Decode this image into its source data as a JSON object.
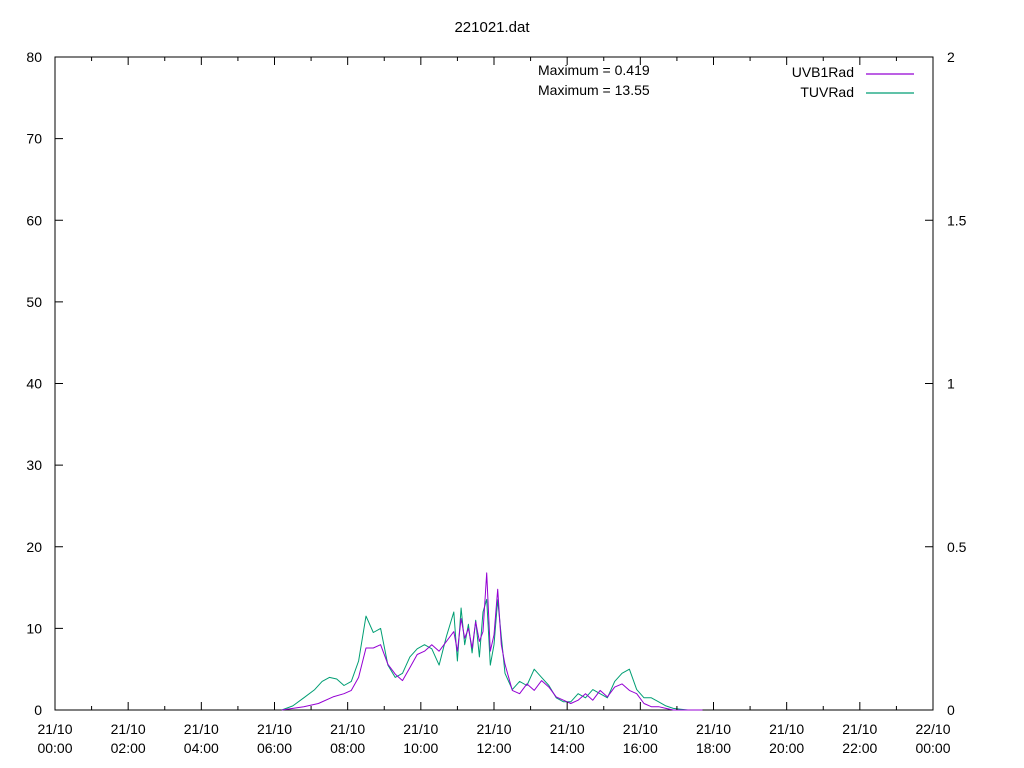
{
  "chart_data": {
    "type": "line",
    "title": "221021.dat",
    "annotations": [
      "Maximum = 0.419",
      "Maximum = 13.55"
    ],
    "legend_placement": "top-right",
    "grid": false,
    "x_axis": {
      "range_hours": [
        0,
        24
      ],
      "tick_labels": [
        [
          "21/10",
          "00:00"
        ],
        [
          "21/10",
          "02:00"
        ],
        [
          "21/10",
          "04:00"
        ],
        [
          "21/10",
          "06:00"
        ],
        [
          "21/10",
          "08:00"
        ],
        [
          "21/10",
          "10:00"
        ],
        [
          "21/10",
          "12:00"
        ],
        [
          "21/10",
          "14:00"
        ],
        [
          "21/10",
          "16:00"
        ],
        [
          "21/10",
          "18:00"
        ],
        [
          "21/10",
          "20:00"
        ],
        [
          "21/10",
          "22:00"
        ],
        [
          "22/10",
          "00:00"
        ]
      ]
    },
    "y_axis_left": {
      "range": [
        0,
        80
      ],
      "ticks": [
        "0",
        "10",
        "20",
        "30",
        "40",
        "50",
        "60",
        "70",
        "80"
      ]
    },
    "y_axis_right": {
      "range": [
        0,
        2
      ],
      "ticks": [
        "0",
        "0.5",
        "1",
        "1.5",
        "2"
      ]
    },
    "series": [
      {
        "name": "UVB1Rad",
        "axis": "right",
        "color": "#9400d3",
        "x_hours": [
          6.2,
          6.8,
          7.2,
          7.6,
          7.9,
          8.1,
          8.3,
          8.5,
          8.7,
          8.9,
          9.1,
          9.3,
          9.5,
          9.7,
          9.9,
          10.1,
          10.3,
          10.5,
          10.7,
          10.9,
          11.0,
          11.1,
          11.2,
          11.3,
          11.4,
          11.5,
          11.6,
          11.7,
          11.8,
          11.9,
          12.0,
          12.1,
          12.2,
          12.3,
          12.5,
          12.7,
          12.9,
          13.1,
          13.3,
          13.5,
          13.7,
          13.9,
          14.1,
          14.3,
          14.5,
          14.7,
          14.9,
          15.1,
          15.3,
          15.5,
          15.7,
          15.9,
          16.1,
          16.3,
          16.5,
          16.7,
          16.9,
          17.1,
          17.3,
          17.5,
          17.7
        ],
        "values": [
          0.0,
          0.01,
          0.02,
          0.04,
          0.05,
          0.06,
          0.1,
          0.19,
          0.19,
          0.2,
          0.14,
          0.11,
          0.09,
          0.13,
          0.17,
          0.18,
          0.2,
          0.18,
          0.21,
          0.24,
          0.18,
          0.28,
          0.22,
          0.25,
          0.19,
          0.27,
          0.21,
          0.24,
          0.42,
          0.18,
          0.23,
          0.37,
          0.2,
          0.14,
          0.06,
          0.05,
          0.08,
          0.06,
          0.09,
          0.07,
          0.04,
          0.03,
          0.02,
          0.03,
          0.05,
          0.03,
          0.06,
          0.04,
          0.07,
          0.08,
          0.06,
          0.05,
          0.02,
          0.01,
          0.01,
          0.005,
          0.0,
          0.0,
          0.0,
          0.0,
          0.0
        ]
      },
      {
        "name": "TUVRad",
        "axis": "left",
        "color": "#009e73",
        "x_hours": [
          6.2,
          6.5,
          6.8,
          7.1,
          7.3,
          7.5,
          7.7,
          7.9,
          8.1,
          8.3,
          8.5,
          8.7,
          8.9,
          9.1,
          9.3,
          9.5,
          9.7,
          9.9,
          10.1,
          10.3,
          10.5,
          10.7,
          10.9,
          11.0,
          11.1,
          11.2,
          11.3,
          11.4,
          11.5,
          11.6,
          11.7,
          11.8,
          11.9,
          12.0,
          12.1,
          12.2,
          12.3,
          12.5,
          12.7,
          12.9,
          13.1,
          13.3,
          13.5,
          13.7,
          13.9,
          14.1,
          14.3,
          14.5,
          14.7,
          14.9,
          15.1,
          15.3,
          15.5,
          15.7,
          15.9,
          16.1,
          16.3,
          16.5,
          16.7,
          16.9,
          17.1,
          17.3
        ],
        "values": [
          0.0,
          0.5,
          1.5,
          2.5,
          3.5,
          4.0,
          3.8,
          3.0,
          3.5,
          6.0,
          11.5,
          9.5,
          10.0,
          5.5,
          4.0,
          4.5,
          6.5,
          7.5,
          8.0,
          7.5,
          5.5,
          9.0,
          12.0,
          6.0,
          12.5,
          8.0,
          10.5,
          7.0,
          11.0,
          6.5,
          12.0,
          13.55,
          5.5,
          8.0,
          13.5,
          9.0,
          4.5,
          2.5,
          3.5,
          3.0,
          5.0,
          4.0,
          3.0,
          1.5,
          1.0,
          1.0,
          2.0,
          1.5,
          2.5,
          2.0,
          1.5,
          3.5,
          4.5,
          5.0,
          2.5,
          1.5,
          1.5,
          1.0,
          0.5,
          0.2,
          0.1,
          0.0
        ]
      }
    ]
  }
}
